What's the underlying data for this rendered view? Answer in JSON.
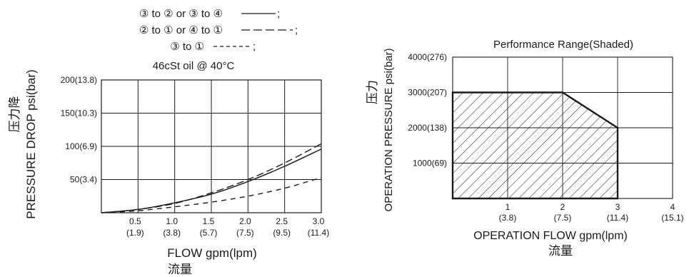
{
  "chart_data": [
    {
      "type": "line",
      "legend": [
        {
          "label": "③ to ② or ③ to ④",
          "style": "solid"
        },
        {
          "label": "② to ① or ④ to ①",
          "style": "long-dash"
        },
        {
          "label": "③ to ①",
          "style": "short-dash"
        }
      ],
      "subtitle": "46cSt oil @ 40°C",
      "ylabel": "PRESSURE DROP psi(bar)",
      "ylabel_cn": "压力降",
      "xlabel": "FLOW gpm(lpm)",
      "xlabel_cn": "流量",
      "xlim": [
        0,
        3.0
      ],
      "ylim": [
        0,
        200
      ],
      "x_ticks": [
        {
          "value": 0.5,
          "label": "0.5",
          "sub": "(1.9)"
        },
        {
          "value": 1.0,
          "label": "1.0",
          "sub": "(3.8)"
        },
        {
          "value": 1.5,
          "label": "1.5",
          "sub": "(5.7)"
        },
        {
          "value": 2.0,
          "label": "2.0",
          "sub": "(7.5)"
        },
        {
          "value": 2.5,
          "label": "2.5",
          "sub": "(9.5)"
        },
        {
          "value": 3.0,
          "label": "3.0",
          "sub": "(11.4)"
        }
      ],
      "y_ticks": [
        {
          "value": 50,
          "label": "50(3.4)"
        },
        {
          "value": 100,
          "label": "100(6.9)"
        },
        {
          "value": 150,
          "label": "150(10.3)"
        },
        {
          "value": 200,
          "label": "200(13.8)"
        }
      ],
      "grid": true,
      "series": [
        {
          "name": "③ to ② or ③ to ④",
          "style": "solid",
          "x": [
            0,
            0.5,
            1.0,
            1.5,
            2.0,
            2.5,
            3.0
          ],
          "y": [
            0,
            5,
            15,
            28,
            47,
            70,
            96
          ]
        },
        {
          "name": "② to ① or ④ to ①",
          "style": "long-dash",
          "x": [
            0,
            0.5,
            1.0,
            1.5,
            2.0,
            2.5,
            3.0
          ],
          "y": [
            0,
            5,
            14,
            30,
            50,
            75,
            104
          ]
        },
        {
          "name": "③ to ①",
          "style": "short-dash",
          "x": [
            0,
            0.5,
            1.0,
            1.5,
            2.0,
            2.5,
            3.0
          ],
          "y": [
            0,
            3,
            9,
            16,
            25,
            37,
            53
          ]
        }
      ]
    },
    {
      "type": "area",
      "title": "Performance Range(Shaded)",
      "ylabel": "OPERATION PRESSURE psi(bar)",
      "ylabel_cn": "压力",
      "xlabel": "OPERATION FLOW gpm(lpm)",
      "xlabel_cn": "流量",
      "xlim": [
        0,
        4
      ],
      "ylim": [
        0,
        4000
      ],
      "x_ticks": [
        {
          "value": 1,
          "label": "1",
          "sub": "(3.8)"
        },
        {
          "value": 2,
          "label": "2",
          "sub": "(7.5)"
        },
        {
          "value": 3,
          "label": "3",
          "sub": "(11.4)"
        },
        {
          "value": 4,
          "label": "4",
          "sub": "(15.1)"
        }
      ],
      "y_ticks": [
        {
          "value": 1000,
          "label": "1000(69)"
        },
        {
          "value": 2000,
          "label": "2000(138)"
        },
        {
          "value": 3000,
          "label": "3000(207)"
        },
        {
          "value": 4000,
          "label": "4000(276)"
        }
      ],
      "grid": true,
      "region": {
        "x": [
          0,
          0,
          2,
          3,
          3
        ],
        "y": [
          0,
          3000,
          3000,
          2000,
          0
        ]
      }
    }
  ]
}
